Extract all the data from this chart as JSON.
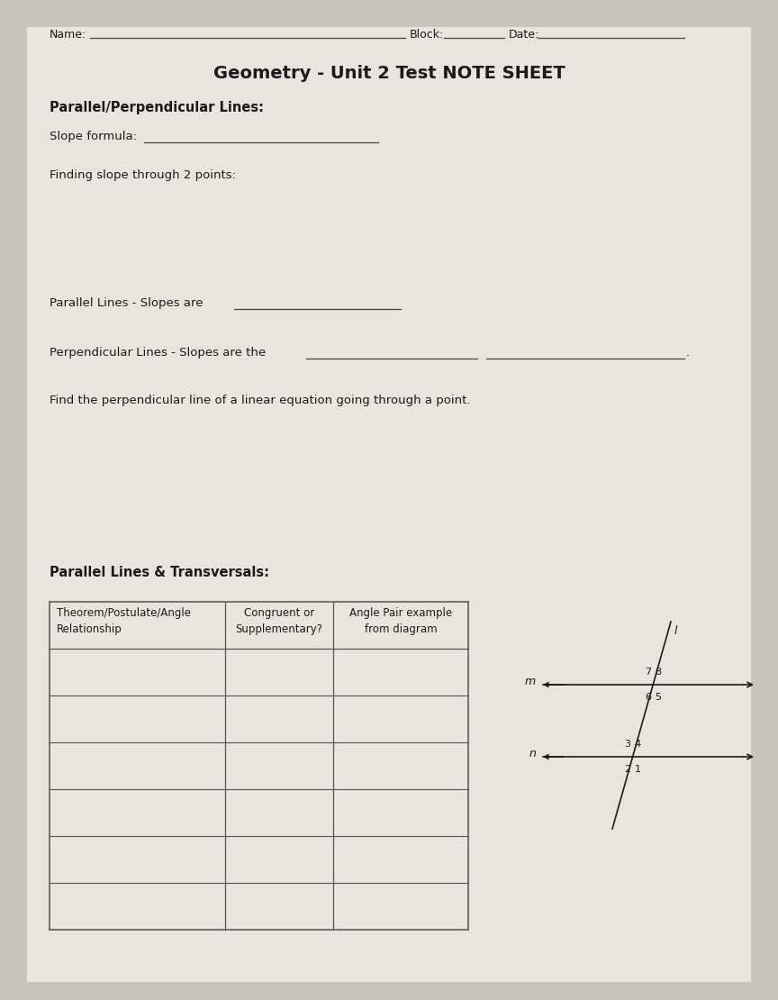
{
  "bg_color": "#c8c4bc",
  "page_color": "#e8e5de",
  "title": "Geometry - Unit 2 Test NOTE SHEET",
  "font_color": "#1a1a1a",
  "line_color": "#444444",
  "table_line_color": "#555555",
  "table_headers": [
    "Theorem/Postulate/Angle\nRelationship",
    "Congruent or\nSupplementary?",
    "Angle Pair example\nfrom diagram"
  ],
  "section1_header": "Parallel/Perpendicular Lines:",
  "section2_header": "Parallel Lines & Transversals:",
  "name_label": "Name:",
  "block_label": "Block:",
  "date_label": "Date:",
  "slope_formula_label": "Slope formula:",
  "finding_slope_label": "Finding slope through 2 points:",
  "parallel_label": "Parallel Lines - Slopes are",
  "perp_label": "Perpendicular Lines - Slopes are the",
  "find_perp_label": "Find the perpendicular line of a linear equation going through a point."
}
